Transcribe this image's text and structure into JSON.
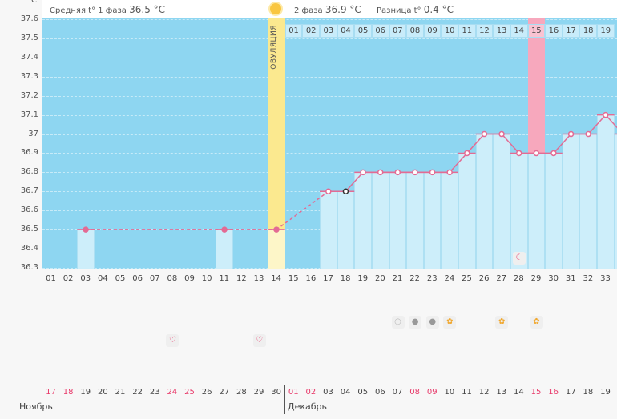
{
  "unit": "°C",
  "header": {
    "phase1_label": "Средняя t° 1 фаза",
    "phase1_value": "36.5 °C",
    "phase2_label": "2 фаза",
    "phase2_value": "36.9 °C",
    "diff_label": "Разница t°",
    "diff_value": "0.4 °C"
  },
  "ovulation_label": "ОВУЛЯЦИЯ",
  "colors": {
    "plot_bg": "#8ed6f1",
    "bar": "#cdeefa",
    "ovulation": "#fbe98f",
    "highlight": "#f7a8bd",
    "line": "#e36b94",
    "weekend": "#e8396a"
  },
  "chart_data": {
    "type": "line",
    "ylim": [
      36.3,
      37.6
    ],
    "yticks": [
      "36.3",
      "36.4",
      "36.5",
      "36.6",
      "36.7",
      "36.8",
      "36.9",
      "37",
      "37.1",
      "37.2",
      "37.3",
      "37.4",
      "37.5",
      "37.6"
    ],
    "cycle_days": [
      "01",
      "02",
      "03",
      "04",
      "05",
      "06",
      "07",
      "08",
      "09",
      "10",
      "11",
      "12",
      "13",
      "14",
      "15",
      "16",
      "17",
      "18",
      "19",
      "20",
      "21",
      "22",
      "23",
      "24",
      "25",
      "26",
      "27",
      "28",
      "29",
      "30",
      "31",
      "32",
      "33"
    ],
    "points": [
      {
        "day": 3,
        "t": 36.5
      },
      {
        "day": 11,
        "t": 36.5
      },
      {
        "day": 14,
        "t": 36.5
      },
      {
        "day": 17,
        "t": 36.7
      },
      {
        "day": 18,
        "t": 36.7
      },
      {
        "day": 19,
        "t": 36.8
      },
      {
        "day": 20,
        "t": 36.8
      },
      {
        "day": 21,
        "t": 36.8
      },
      {
        "day": 22,
        "t": 36.8
      },
      {
        "day": 23,
        "t": 36.8
      },
      {
        "day": 24,
        "t": 36.8
      },
      {
        "day": 25,
        "t": 36.9
      },
      {
        "day": 26,
        "t": 37.0
      },
      {
        "day": 27,
        "t": 37.0
      },
      {
        "day": 28,
        "t": 36.9
      },
      {
        "day": 29,
        "t": 36.9
      },
      {
        "day": 30,
        "t": 36.9
      },
      {
        "day": 31,
        "t": 37.0
      },
      {
        "day": 32,
        "t": 37.0
      },
      {
        "day": 33,
        "t": 37.1
      },
      {
        "day": 34,
        "t": 37.0
      }
    ],
    "ovulation_day": 14,
    "highlight_day": 29,
    "phase2_days": [
      "01",
      "02",
      "03",
      "04",
      "05",
      "06",
      "07",
      "08",
      "09",
      "10",
      "11",
      "12",
      "13",
      "14",
      "15",
      "16",
      "17",
      "18",
      "19"
    ]
  },
  "dates": [
    {
      "d": "17",
      "w": true
    },
    {
      "d": "18",
      "w": true
    },
    {
      "d": "19"
    },
    {
      "d": "20"
    },
    {
      "d": "21"
    },
    {
      "d": "22"
    },
    {
      "d": "23"
    },
    {
      "d": "24",
      "w": true
    },
    {
      "d": "25",
      "w": true
    },
    {
      "d": "26"
    },
    {
      "d": "27"
    },
    {
      "d": "28"
    },
    {
      "d": "29"
    },
    {
      "d": "30"
    },
    {
      "d": "01",
      "w": true
    },
    {
      "d": "02",
      "w": true
    },
    {
      "d": "03"
    },
    {
      "d": "04"
    },
    {
      "d": "05"
    },
    {
      "d": "06"
    },
    {
      "d": "07"
    },
    {
      "d": "08",
      "w": true
    },
    {
      "d": "09",
      "w": true
    },
    {
      "d": "10"
    },
    {
      "d": "11"
    },
    {
      "d": "12"
    },
    {
      "d": "13"
    },
    {
      "d": "14"
    },
    {
      "d": "15",
      "w": true
    },
    {
      "d": "16",
      "w": true
    },
    {
      "d": "17"
    },
    {
      "d": "18"
    },
    {
      "d": "19"
    }
  ],
  "months": {
    "first": "Ноябрь",
    "second": "Декабрь"
  },
  "events": [
    {
      "day": 21,
      "icon": "white-circle-icon"
    },
    {
      "day": 22,
      "icon": "gray-circle-icon"
    },
    {
      "day": 23,
      "icon": "gray-circle-icon"
    },
    {
      "day": 24,
      "icon": "flower-icon"
    },
    {
      "day": 27,
      "icon": "flower-icon"
    },
    {
      "day": 29,
      "icon": "flower-icon"
    },
    {
      "day": 8,
      "icon": "heart-icon"
    },
    {
      "day": 13,
      "icon": "heart-icon"
    },
    {
      "day": 28,
      "icon": "moon-icon"
    }
  ]
}
